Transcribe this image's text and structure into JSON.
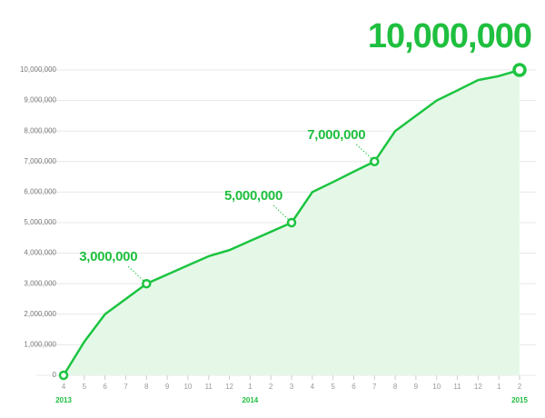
{
  "chart_data": {
    "type": "area",
    "categories": [
      "4",
      "5",
      "6",
      "7",
      "8",
      "9",
      "10",
      "11",
      "12",
      "1",
      "2",
      "3",
      "4",
      "5",
      "6",
      "7",
      "8",
      "9",
      "10",
      "11",
      "12",
      "1",
      "2"
    ],
    "years": [
      "2013",
      null,
      null,
      null,
      null,
      null,
      null,
      null,
      null,
      "2014",
      null,
      null,
      null,
      null,
      null,
      null,
      null,
      null,
      null,
      null,
      null,
      null,
      "2015"
    ],
    "values": [
      0,
      1100000,
      2000000,
      2500000,
      3000000,
      3300000,
      3600000,
      3900000,
      4100000,
      4400000,
      4700000,
      5000000,
      6000000,
      6330000,
      6670000,
      7000000,
      8000000,
      8500000,
      9000000,
      9330000,
      9670000,
      9800000,
      10000000
    ],
    "value_labels": [
      null,
      null,
      null,
      null,
      "3,000,000",
      null,
      null,
      null,
      null,
      null,
      null,
      "5,000,000",
      null,
      null,
      null,
      "7,000,000",
      null,
      null,
      null,
      null,
      null,
      null,
      "10,000,000"
    ],
    "color": "#1cc440",
    "fill": "#e5f8e8",
    "ylim": [
      0,
      10000000
    ],
    "yticks": [
      0,
      {
        "value": 1000000,
        "label": "1,000,000"
      },
      {
        "value": 2000000,
        "label": "2,000,000"
      },
      {
        "value": 3000000,
        "label": "3,000,000"
      },
      {
        "value": 4000000,
        "label": "4,000,000"
      },
      {
        "value": 5000000,
        "label": "5,000,000"
      },
      {
        "value": 6000000,
        "label": "6,000,000"
      },
      {
        "value": 7000000,
        "label": "7,000,000"
      },
      {
        "value": 8000000,
        "label": "8,000,000"
      },
      {
        "value": 9000000,
        "label": "9,000,000"
      },
      {
        "value": 10000000,
        "label": "10,000,000"
      }
    ],
    "grid": true
  }
}
